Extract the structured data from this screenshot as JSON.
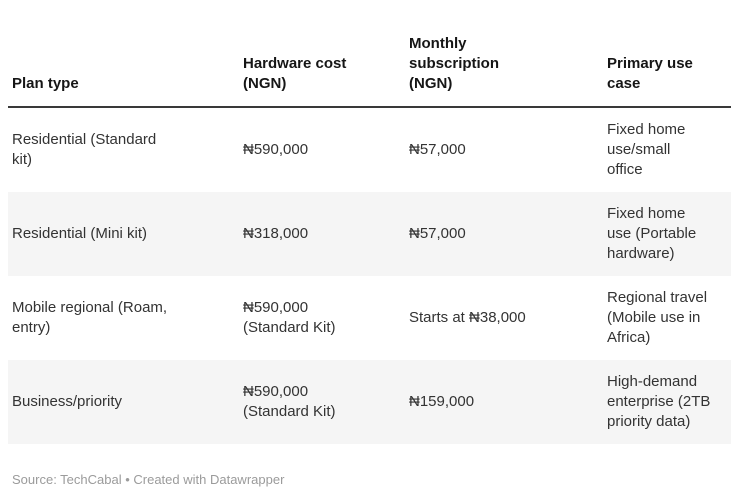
{
  "colors": {
    "stripe": "#f5f5f5",
    "header_border": "#393939",
    "header_text": "#161616",
    "body_text": "#333333",
    "footer_text": "#9b9b9b",
    "background": "#ffffff"
  },
  "table": {
    "columns": [
      {
        "label": "Plan type"
      },
      {
        "label": "Hardware cost\n(NGN)"
      },
      {
        "label": "Monthly\nsubscription\n(NGN)"
      },
      {
        "label": "Primary use\ncase"
      }
    ],
    "rows": [
      {
        "plan_type": "Residential (Standard\nkit)",
        "hardware_cost": "₦590,000",
        "monthly_subscription": "₦57,000",
        "primary_use_case": "Fixed home\nuse/small\noffice"
      },
      {
        "plan_type": "Residential (Mini kit)",
        "hardware_cost": "₦318,000",
        "monthly_subscription": "₦57,000",
        "primary_use_case": "Fixed home\nuse (Portable\nhardware)"
      },
      {
        "plan_type": "Mobile regional (Roam,\nentry)",
        "hardware_cost": "₦590,000\n(Standard Kit)",
        "monthly_subscription": "Starts at ₦38,000",
        "primary_use_case": "Regional travel\n(Mobile use in\nAfrica)"
      },
      {
        "plan_type": "Business/priority",
        "hardware_cost": "₦590,000\n(Standard Kit)",
        "monthly_subscription": "₦159,000",
        "primary_use_case": "High-demand\nenterprise (2TB\npriority data)"
      }
    ]
  },
  "footer": {
    "attribution": "Source: TechCabal • Created with Datawrapper"
  },
  "chart_data": {
    "type": "table",
    "title": "",
    "columns": [
      "Plan type",
      "Hardware cost (NGN)",
      "Monthly subscription (NGN)",
      "Primary use case"
    ],
    "rows": [
      [
        "Residential (Standard kit)",
        "₦590,000",
        "₦57,000",
        "Fixed home use/small office"
      ],
      [
        "Residential (Mini kit)",
        "₦318,000",
        "₦57,000",
        "Fixed home use (Portable hardware)"
      ],
      [
        "Mobile regional (Roam, entry)",
        "₦590,000 (Standard Kit)",
        "Starts at ₦38,000",
        "Regional travel (Mobile use in Africa)"
      ],
      [
        "Business/priority",
        "₦590,000 (Standard Kit)",
        "₦159,000",
        "High-demand enterprise (2TB priority data)"
      ]
    ],
    "layout_hints": {
      "zebra_stripes": true,
      "header_border": "2px dark",
      "source_line": "Source: TechCabal • Created with Datawrapper"
    }
  }
}
